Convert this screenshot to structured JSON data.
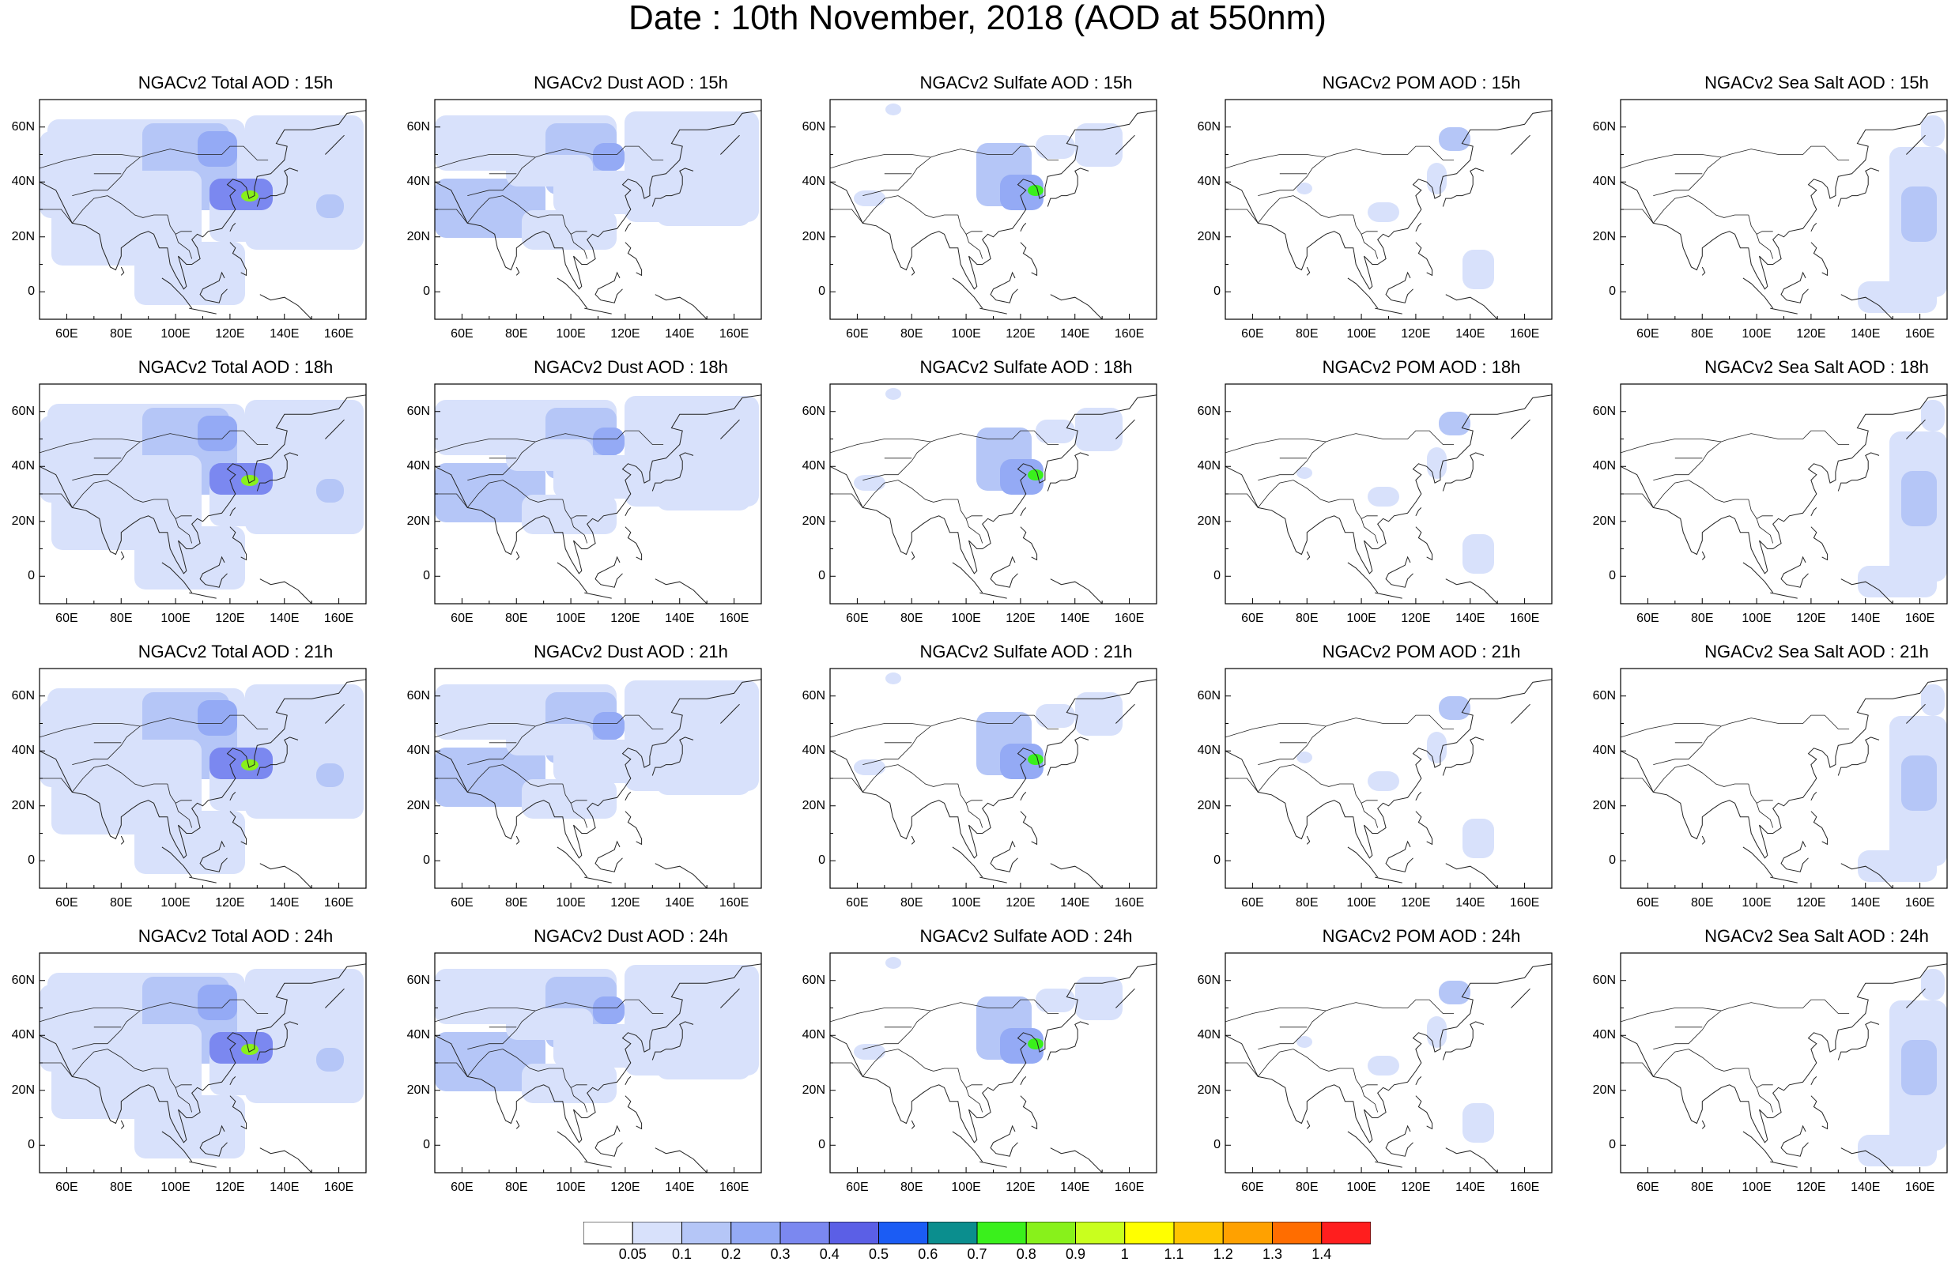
{
  "title": "Date : 10th November, 2018 (AOD at 550nm)",
  "products": [
    {
      "key": "total",
      "label": "Total AOD"
    },
    {
      "key": "dust",
      "label": "Dust AOD"
    },
    {
      "key": "sulfate",
      "label": "Sulfate AOD"
    },
    {
      "key": "pom",
      "label": "POM AOD"
    },
    {
      "key": "seasalt",
      "label": "Sea Salt AOD"
    }
  ],
  "panels": [
    {
      "title": "NGACv2 Total AOD : 15h",
      "product": "total",
      "hour": "15h"
    },
    {
      "title": "NGACv2 Dust AOD : 15h",
      "product": "dust",
      "hour": "15h"
    },
    {
      "title": "NGACv2 Sulfate AOD : 15h",
      "product": "sulfate",
      "hour": "15h"
    },
    {
      "title": "NGACv2 POM AOD : 15h",
      "product": "pom",
      "hour": "15h"
    },
    {
      "title": "NGACv2 Sea Salt AOD : 15h",
      "product": "seasalt",
      "hour": "15h"
    },
    {
      "title": "NGACv2 Total AOD : 18h",
      "product": "total",
      "hour": "18h"
    },
    {
      "title": "NGACv2 Dust AOD : 18h",
      "product": "dust",
      "hour": "18h"
    },
    {
      "title": "NGACv2 Sulfate AOD : 18h",
      "product": "sulfate",
      "hour": "18h"
    },
    {
      "title": "NGACv2 POM AOD : 18h",
      "product": "pom",
      "hour": "18h"
    },
    {
      "title": "NGACv2 Sea Salt AOD : 18h",
      "product": "seasalt",
      "hour": "18h"
    },
    {
      "title": "NGACv2 Total AOD : 21h",
      "product": "total",
      "hour": "21h"
    },
    {
      "title": "NGACv2 Dust AOD : 21h",
      "product": "dust",
      "hour": "21h"
    },
    {
      "title": "NGACv2 Sulfate AOD : 21h",
      "product": "sulfate",
      "hour": "21h"
    },
    {
      "title": "NGACv2 POM AOD : 21h",
      "product": "pom",
      "hour": "21h"
    },
    {
      "title": "NGACv2 Sea Salt AOD : 21h",
      "product": "seasalt",
      "hour": "21h"
    },
    {
      "title": "NGACv2 Total AOD : 24h",
      "product": "total",
      "hour": "24h"
    },
    {
      "title": "NGACv2 Dust AOD : 24h",
      "product": "dust",
      "hour": "24h"
    },
    {
      "title": "NGACv2 Sulfate AOD : 24h",
      "product": "sulfate",
      "hour": "24h"
    },
    {
      "title": "NGACv2 POM AOD : 24h",
      "product": "pom",
      "hour": "24h"
    },
    {
      "title": "NGACv2 Sea Salt  AOD : 24h",
      "product": "seasalt",
      "hour": "24h"
    }
  ],
  "lat_ticks": [
    "60N",
    "40N",
    "20N",
    "0"
  ],
  "lon_ticks": [
    "60E",
    "80E",
    "100E",
    "120E",
    "140E",
    "160E"
  ],
  "colorbar": {
    "labels": [
      "0.05",
      "0.1",
      "0.2",
      "0.3",
      "0.4",
      "0.5",
      "0.6",
      "0.7",
      "0.8",
      "0.9",
      "1",
      "1.1",
      "1.2",
      "1.3",
      "1.4"
    ],
    "colors": [
      "#ffffff",
      "#d8e1fb",
      "#b5c6f7",
      "#94aaf5",
      "#7b88f0",
      "#5b5fe6",
      "#1b5cf4",
      "#0b8e8e",
      "#3af01c",
      "#88f11b",
      "#c9ff1e",
      "#ffff00",
      "#ffc400",
      "#ffa100",
      "#ff6d00",
      "#ff1e1e"
    ]
  }
}
